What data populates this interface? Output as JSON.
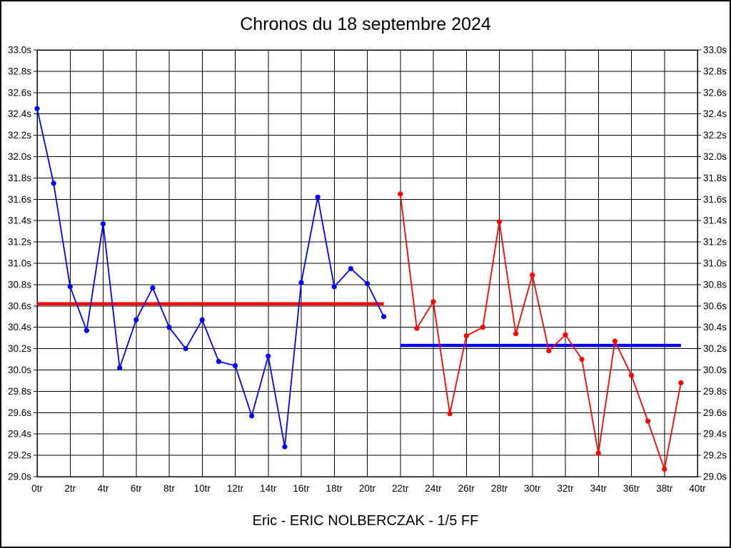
{
  "window": {
    "background": "#ffffff",
    "border_color": "#000000",
    "grid_color": "#000000"
  },
  "chart_data": {
    "type": "line",
    "title": "Chronos du 18 septembre 2024",
    "caption": "Eric - ERIC NOLBERCZAK - 1/5 FF",
    "x_unit": "tr",
    "y_unit": "s",
    "xlim": [
      0,
      40
    ],
    "ylim": [
      29.0,
      33.0
    ],
    "x_tick_step": 2,
    "y_tick_step": 0.2,
    "grid": true,
    "axis_labels_on_both_sides": true,
    "series": [
      {
        "name": "chronos-serie-1",
        "color": "#0000ff",
        "x": [
          0,
          1,
          2,
          3,
          4,
          5,
          6,
          7,
          8,
          9,
          10,
          11,
          12,
          13,
          14,
          15,
          16,
          17,
          18,
          19,
          20,
          21
        ],
        "values": [
          32.45,
          31.75,
          30.78,
          30.37,
          31.37,
          30.02,
          30.47,
          30.77,
          30.4,
          30.2,
          30.47,
          30.08,
          30.04,
          29.57,
          30.13,
          29.28,
          30.82,
          31.62,
          30.78,
          30.95,
          30.81,
          30.5
        ]
      },
      {
        "name": "chronos-serie-2",
        "color": "#ff0000",
        "x": [
          22,
          23,
          24,
          25,
          26,
          27,
          28,
          29,
          30,
          31,
          32,
          33,
          34,
          35,
          36,
          37,
          38,
          39
        ],
        "values": [
          31.65,
          30.39,
          30.64,
          29.59,
          30.32,
          30.4,
          31.39,
          30.34,
          30.89,
          30.18,
          30.33,
          30.1,
          29.22,
          30.27,
          29.95,
          29.52,
          29.07,
          29.88
        ]
      }
    ],
    "average_lines": [
      {
        "name": "moyenne-serie-1",
        "color": "#ff0000",
        "value": 30.62,
        "x_start": 0,
        "x_end": 21
      },
      {
        "name": "moyenne-serie-2",
        "color": "#0000ff",
        "value": 30.23,
        "x_start": 22,
        "x_end": 39
      }
    ]
  }
}
